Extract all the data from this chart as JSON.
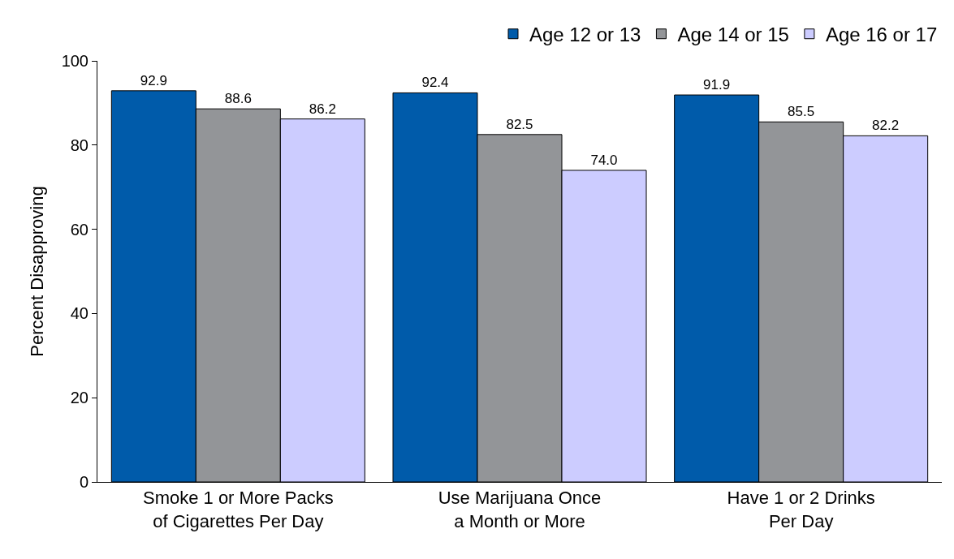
{
  "chart_data": {
    "type": "bar",
    "ylabel": "Percent Disapproving",
    "categories": [
      "Smoke 1 or More Packs\nof Cigarettes Per Day",
      "Use Marijuana Once\na Month or More",
      "Have 1 or 2 Drinks\nPer Day"
    ],
    "series": [
      {
        "name": "Age 12 or 13",
        "color": "#005baa",
        "values": [
          92.9,
          92.4,
          91.9
        ],
        "value_labels": [
          "92.9",
          "92.4",
          "91.9"
        ]
      },
      {
        "name": "Age 14 or 15",
        "color": "#939598",
        "values": [
          88.6,
          82.5,
          85.5
        ],
        "value_labels": [
          "88.6",
          "82.5",
          "85.5"
        ]
      },
      {
        "name": "Age 16 or 17",
        "color": "#ccccff",
        "values": [
          86.2,
          74.0,
          82.2
        ],
        "value_labels": [
          "86.2",
          "74.0",
          "82.2"
        ]
      }
    ],
    "ylim": [
      0,
      100
    ],
    "yticks": [
      0,
      20,
      40,
      60,
      80,
      100
    ],
    "grid": false,
    "legend": "top right"
  }
}
